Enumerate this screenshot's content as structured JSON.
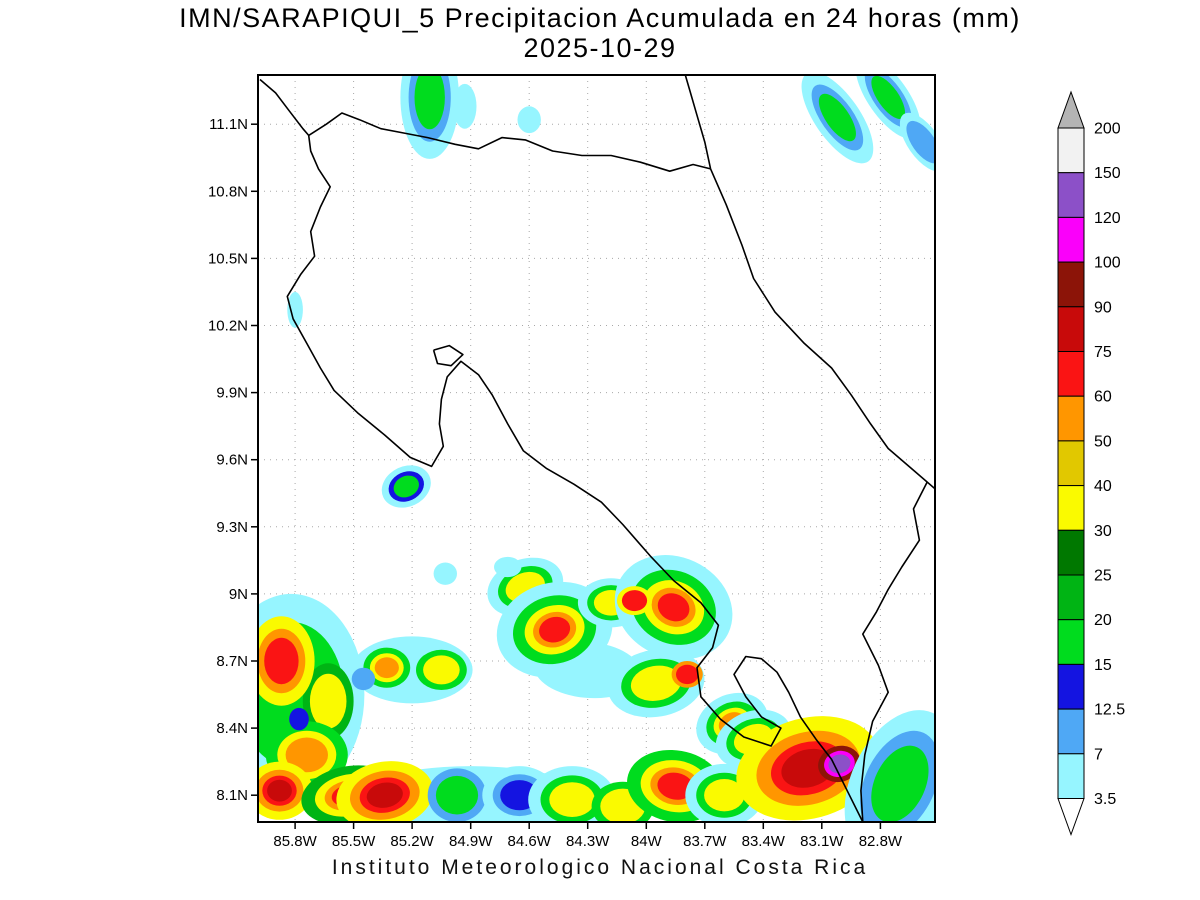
{
  "header": {
    "title": "IMN/SARAPIQUI_5 Precipitacion Acumulada en 24 horas (mm)",
    "date": "2025-10-29"
  },
  "footer": {
    "text": "Instituto Meteorologico Nacional Costa Rica"
  },
  "chart_data": {
    "type": "heatmap",
    "title": "IMN/SARAPIQUI_5 Precipitacion Acumulada en 24 horas (mm)",
    "subtitle": "2025-10-29",
    "units": "mm",
    "grid": true,
    "legend_position": "right",
    "lon_range": [
      85.99,
      82.52
    ],
    "lat_range": [
      7.98,
      11.32
    ],
    "x_ticks": [
      {
        "label": "85.8W",
        "lon": 85.8
      },
      {
        "label": "85.5W",
        "lon": 85.5
      },
      {
        "label": "85.2W",
        "lon": 85.2
      },
      {
        "label": "84.9W",
        "lon": 84.9
      },
      {
        "label": "84.6W",
        "lon": 84.6
      },
      {
        "label": "84.3W",
        "lon": 84.3
      },
      {
        "label": "84W",
        "lon": 84.0
      },
      {
        "label": "83.7W",
        "lon": 83.7
      },
      {
        "label": "83.4W",
        "lon": 83.4
      },
      {
        "label": "83.1W",
        "lon": 83.1
      },
      {
        "label": "82.8W",
        "lon": 82.8
      }
    ],
    "y_ticks": [
      {
        "label": "11.1N",
        "lat": 11.1
      },
      {
        "label": "10.8N",
        "lat": 10.8
      },
      {
        "label": "10.5N",
        "lat": 10.5
      },
      {
        "label": "10.2N",
        "lat": 10.2
      },
      {
        "label": "9.9N",
        "lat": 9.9
      },
      {
        "label": "9.6N",
        "lat": 9.6
      },
      {
        "label": "9.3N",
        "lat": 9.3
      },
      {
        "label": "9N",
        "lat": 9.0
      },
      {
        "label": "8.7N",
        "lat": 8.7
      },
      {
        "label": "8.4N",
        "lat": 8.4
      },
      {
        "label": "8.1N",
        "lat": 8.1
      }
    ],
    "palette": {
      "c35": "#96f5ff",
      "b7": "#4fa8f5",
      "b125": "#1414e1",
      "g15": "#00dc1e",
      "g20": "#00b414",
      "g25": "#007800",
      "y30": "#fafa00",
      "y40": "#e1c800",
      "o50": "#ff9600",
      "r60": "#fa1414",
      "r75": "#c80a0a",
      "r90": "#8c1408",
      "m100": "#fa00fa",
      "p120": "#8c50c8",
      "w150": "#f2f2f2"
    },
    "colorbar": {
      "boundaries": [
        "200",
        "150",
        "120",
        "100",
        "90",
        "75",
        "60",
        "50",
        "40",
        "30",
        "25",
        "20",
        "15",
        "12.5",
        "7",
        "3.5"
      ],
      "box_colors": [
        "w150",
        "p120",
        "m100",
        "r90",
        "r75",
        "r60",
        "o50",
        "y40",
        "y30",
        "g25",
        "g20",
        "g15",
        "b125",
        "b7",
        "c35"
      ],
      "above_color": "#b4b4b4",
      "below_color": "#ffffff"
    },
    "coastlines": [
      [
        [
          85.98,
          11.3
        ],
        [
          85.9,
          11.24
        ],
        [
          85.83,
          11.16
        ],
        [
          85.76,
          11.08
        ],
        [
          85.73,
          11.05
        ]
      ],
      [
        [
          85.73,
          11.05
        ],
        [
          85.64,
          11.1
        ],
        [
          85.56,
          11.15
        ],
        [
          85.47,
          11.12
        ],
        [
          85.36,
          11.08
        ],
        [
          85.24,
          11.06
        ],
        [
          85.12,
          11.04
        ],
        [
          84.98,
          11.01
        ],
        [
          84.86,
          10.99
        ],
        [
          84.74,
          11.04
        ],
        [
          84.62,
          11.03
        ],
        [
          84.48,
          10.98
        ],
        [
          84.33,
          10.96
        ],
        [
          84.18,
          10.96
        ],
        [
          84.03,
          10.93
        ],
        [
          83.88,
          10.89
        ],
        [
          83.76,
          10.92
        ],
        [
          83.67,
          10.9
        ]
      ],
      [
        [
          83.67,
          10.9
        ],
        [
          83.7,
          11.02
        ],
        [
          83.74,
          11.14
        ],
        [
          83.78,
          11.26
        ],
        [
          83.8,
          11.32
        ]
      ],
      [
        [
          83.67,
          10.9
        ],
        [
          83.59,
          10.74
        ],
        [
          83.51,
          10.56
        ],
        [
          83.45,
          10.41
        ],
        [
          83.34,
          10.26
        ],
        [
          83.19,
          10.12
        ],
        [
          83.05,
          10.01
        ],
        [
          82.95,
          9.89
        ],
        [
          82.85,
          9.76
        ],
        [
          82.76,
          9.65
        ],
        [
          82.64,
          9.56
        ],
        [
          82.52,
          9.47
        ]
      ],
      [
        [
          82.56,
          9.5
        ],
        [
          82.63,
          9.38
        ],
        [
          82.6,
          9.24
        ],
        [
          82.69,
          9.12
        ],
        [
          82.76,
          9.02
        ],
        [
          82.82,
          8.92
        ],
        [
          82.89,
          8.82
        ],
        [
          82.81,
          8.68
        ],
        [
          82.76,
          8.56
        ],
        [
          82.84,
          8.43
        ],
        [
          82.88,
          8.28
        ],
        [
          82.9,
          8.12
        ],
        [
          82.89,
          7.98
        ]
      ],
      [
        [
          82.89,
          7.98
        ],
        [
          82.97,
          8.12
        ],
        [
          83.05,
          8.26
        ],
        [
          83.13,
          8.35
        ],
        [
          83.21,
          8.45
        ],
        [
          83.27,
          8.56
        ],
        [
          83.33,
          8.65
        ],
        [
          83.41,
          8.71
        ],
        [
          83.49,
          8.72
        ],
        [
          83.55,
          8.64
        ],
        [
          83.49,
          8.54
        ],
        [
          83.41,
          8.45
        ],
        [
          83.31,
          8.4
        ],
        [
          83.36,
          8.32
        ],
        [
          83.5,
          8.36
        ],
        [
          83.62,
          8.44
        ],
        [
          83.72,
          8.54
        ],
        [
          83.74,
          8.67
        ],
        [
          83.66,
          8.76
        ],
        [
          83.63,
          8.86
        ],
        [
          83.72,
          8.96
        ],
        [
          83.86,
          9.06
        ],
        [
          83.98,
          9.17
        ],
        [
          84.12,
          9.31
        ],
        [
          84.23,
          9.41
        ],
        [
          84.37,
          9.49
        ],
        [
          84.51,
          9.56
        ],
        [
          84.63,
          9.64
        ],
        [
          84.71,
          9.76
        ],
        [
          84.79,
          9.89
        ],
        [
          84.86,
          9.98
        ],
        [
          84.95,
          10.04
        ],
        [
          85.02,
          9.97
        ],
        [
          85.05,
          9.87
        ],
        [
          85.06,
          9.76
        ],
        [
          85.04,
          9.66
        ],
        [
          85.1,
          9.57
        ],
        [
          85.21,
          9.61
        ],
        [
          85.34,
          9.71
        ],
        [
          85.48,
          9.81
        ],
        [
          85.6,
          9.91
        ],
        [
          85.67,
          10.01
        ],
        [
          85.74,
          10.12
        ],
        [
          85.81,
          10.23
        ],
        [
          85.84,
          10.33
        ],
        [
          85.77,
          10.43
        ],
        [
          85.7,
          10.51
        ],
        [
          85.72,
          10.62
        ],
        [
          85.67,
          10.73
        ],
        [
          85.62,
          10.82
        ],
        [
          85.68,
          10.9
        ],
        [
          85.72,
          10.98
        ],
        [
          85.73,
          11.05
        ]
      ],
      [
        [
          85.09,
          10.09
        ],
        [
          85.01,
          10.11
        ],
        [
          84.94,
          10.07
        ],
        [
          85.0,
          10.02
        ],
        [
          85.07,
          10.03
        ],
        [
          85.09,
          10.09
        ]
      ]
    ],
    "precip_cells": [
      {
        "lon": 85.82,
        "lat": 8.55,
        "w": 0.75,
        "h": 0.9,
        "rot": 0,
        "stack": [
          "c35",
          "g15"
        ]
      },
      {
        "lon": 84.9,
        "lat": 8.03,
        "w": 1.4,
        "h": 0.4,
        "rot": 0,
        "stack": [
          "c35"
        ]
      },
      {
        "lon": 85.2,
        "lat": 8.66,
        "w": 0.62,
        "h": 0.3,
        "rot": 0,
        "stack": [
          "c35"
        ]
      },
      {
        "lon": 84.3,
        "lat": 8.66,
        "w": 0.55,
        "h": 0.25,
        "rot": 5,
        "stack": [
          "c35"
        ]
      },
      {
        "lon": 84.62,
        "lat": 9.03,
        "w": 0.4,
        "h": 0.25,
        "rot": -20,
        "stack": [
          "c35",
          "g15",
          "y30"
        ]
      },
      {
        "lon": 84.47,
        "lat": 8.84,
        "w": 0.6,
        "h": 0.42,
        "rot": -15,
        "stack": [
          "c35",
          "g15",
          "y30",
          "o50",
          "r60"
        ]
      },
      {
        "lon": 84.18,
        "lat": 8.96,
        "w": 0.34,
        "h": 0.22,
        "rot": 0,
        "stack": [
          "c35",
          "g15",
          "y30"
        ]
      },
      {
        "lon": 83.86,
        "lat": 8.94,
        "w": 0.62,
        "h": 0.45,
        "rot": 25,
        "stack": [
          "c35",
          "g15",
          "y30",
          "o50",
          "r60"
        ]
      },
      {
        "lon": 83.95,
        "lat": 8.6,
        "w": 0.5,
        "h": 0.3,
        "rot": -10,
        "stack": [
          "c35",
          "g15",
          "y30"
        ]
      },
      {
        "lon": 83.56,
        "lat": 8.42,
        "w": 0.38,
        "h": 0.26,
        "rot": -25,
        "stack": [
          "c35",
          "g15",
          "y30",
          "o50"
        ]
      },
      {
        "lon": 83.45,
        "lat": 8.35,
        "w": 0.4,
        "h": 0.25,
        "rot": -20,
        "stack": [
          "c35",
          "g15",
          "y30"
        ]
      },
      {
        "lon": 85.33,
        "lat": 8.67,
        "w": 0.24,
        "h": 0.18,
        "rot": 0,
        "stack": [
          "g15",
          "y30",
          "o50"
        ]
      },
      {
        "lon": 85.05,
        "lat": 8.66,
        "w": 0.26,
        "h": 0.18,
        "rot": 0,
        "stack": [
          "g15",
          "y30"
        ]
      },
      {
        "lon": 85.63,
        "lat": 8.52,
        "w": 0.26,
        "h": 0.34,
        "rot": 0,
        "stack": [
          "g20",
          "y30"
        ]
      },
      {
        "lon": 85.74,
        "lat": 8.28,
        "w": 0.42,
        "h": 0.3,
        "rot": 0,
        "stack": [
          "g15",
          "y30",
          "o50"
        ]
      },
      {
        "lon": 85.87,
        "lat": 8.7,
        "w": 0.34,
        "h": 0.4,
        "rot": 0,
        "stack": [
          "y30",
          "o50",
          "r60"
        ]
      },
      {
        "lon": 85.88,
        "lat": 8.12,
        "w": 0.34,
        "h": 0.26,
        "rot": 0,
        "stack": [
          "y30",
          "o50",
          "r60",
          "r75"
        ]
      },
      {
        "lon": 85.52,
        "lat": 8.1,
        "w": 0.5,
        "h": 0.26,
        "rot": -10,
        "stack": [
          "g20",
          "y30",
          "o50",
          "r60"
        ]
      },
      {
        "lon": 85.34,
        "lat": 8.1,
        "w": 0.5,
        "h": 0.3,
        "rot": -10,
        "stack": [
          "y30",
          "o50",
          "r60",
          "r75"
        ]
      },
      {
        "lon": 84.97,
        "lat": 8.1,
        "w": 0.3,
        "h": 0.24,
        "rot": 0,
        "stack": [
          "b7",
          "g15"
        ]
      },
      {
        "lon": 84.65,
        "lat": 8.1,
        "w": 0.38,
        "h": 0.26,
        "rot": 0,
        "stack": [
          "c35",
          "b7",
          "b125"
        ]
      },
      {
        "lon": 84.38,
        "lat": 8.08,
        "w": 0.45,
        "h": 0.3,
        "rot": 0,
        "stack": [
          "c35",
          "g15",
          "y30"
        ]
      },
      {
        "lon": 84.12,
        "lat": 8.05,
        "w": 0.32,
        "h": 0.22,
        "rot": 0,
        "stack": [
          "g15",
          "y30"
        ]
      },
      {
        "lon": 83.85,
        "lat": 8.14,
        "w": 0.5,
        "h": 0.32,
        "rot": 10,
        "stack": [
          "g15",
          "y30",
          "o50",
          "r60"
        ]
      },
      {
        "lon": 83.6,
        "lat": 8.1,
        "w": 0.4,
        "h": 0.28,
        "rot": 0,
        "stack": [
          "c35",
          "g15",
          "y30"
        ]
      },
      {
        "lon": 83.17,
        "lat": 8.22,
        "w": 0.75,
        "h": 0.45,
        "rot": -15,
        "stack": [
          "y30",
          "o50",
          "r60",
          "r75"
        ]
      },
      {
        "lon": 83.01,
        "lat": 8.24,
        "w": 0.22,
        "h": 0.16,
        "rot": -15,
        "stack": [
          "r90",
          "m100",
          "p120"
        ]
      },
      {
        "lon": 82.7,
        "lat": 8.15,
        "w": 0.5,
        "h": 0.7,
        "rot": 25,
        "stack": [
          "c35",
          "b7",
          "g15"
        ]
      },
      {
        "lon": 84.06,
        "lat": 8.97,
        "w": 0.18,
        "h": 0.13,
        "rot": 0,
        "stack": [
          "y30",
          "r60"
        ]
      },
      {
        "lon": 83.79,
        "lat": 8.64,
        "w": 0.16,
        "h": 0.12,
        "rot": 0,
        "stack": [
          "o50",
          "r60"
        ]
      },
      {
        "lon": 85.78,
        "lat": 8.44,
        "w": 0.1,
        "h": 0.1,
        "rot": 0,
        "stack": [
          "b125"
        ]
      },
      {
        "lon": 85.45,
        "lat": 8.62,
        "w": 0.12,
        "h": 0.1,
        "rot": 0,
        "stack": [
          "b7"
        ]
      },
      {
        "lon": 85.11,
        "lat": 11.22,
        "w": 0.3,
        "h": 0.55,
        "rot": 0,
        "stack": [
          "c35",
          "b7",
          "g15"
        ]
      },
      {
        "lon": 84.93,
        "lat": 11.18,
        "w": 0.12,
        "h": 0.2,
        "rot": 0,
        "stack": [
          "c35"
        ]
      },
      {
        "lon": 84.6,
        "lat": 11.12,
        "w": 0.12,
        "h": 0.12,
        "rot": 0,
        "stack": [
          "c35"
        ]
      },
      {
        "lon": 83.02,
        "lat": 11.13,
        "w": 0.55,
        "h": 0.2,
        "rot": 55,
        "stack": [
          "c35",
          "b7",
          "g15"
        ]
      },
      {
        "lon": 82.76,
        "lat": 11.22,
        "w": 0.5,
        "h": 0.18,
        "rot": 55,
        "stack": [
          "c35",
          "b7",
          "g15"
        ]
      },
      {
        "lon": 82.58,
        "lat": 11.02,
        "w": 0.35,
        "h": 0.14,
        "rot": 55,
        "stack": [
          "c35",
          "b7"
        ]
      },
      {
        "lon": 85.8,
        "lat": 10.27,
        "w": 0.08,
        "h": 0.16,
        "rot": 0,
        "stack": [
          "c35"
        ]
      },
      {
        "lon": 85.23,
        "lat": 9.48,
        "w": 0.26,
        "h": 0.18,
        "rot": -25,
        "stack": [
          "c35",
          "b125",
          "g15"
        ]
      },
      {
        "lon": 85.03,
        "lat": 9.09,
        "w": 0.12,
        "h": 0.1,
        "rot": 0,
        "stack": [
          "c35"
        ]
      },
      {
        "lon": 84.71,
        "lat": 9.12,
        "w": 0.14,
        "h": 0.09,
        "rot": 0,
        "stack": [
          "c35"
        ]
      }
    ]
  }
}
